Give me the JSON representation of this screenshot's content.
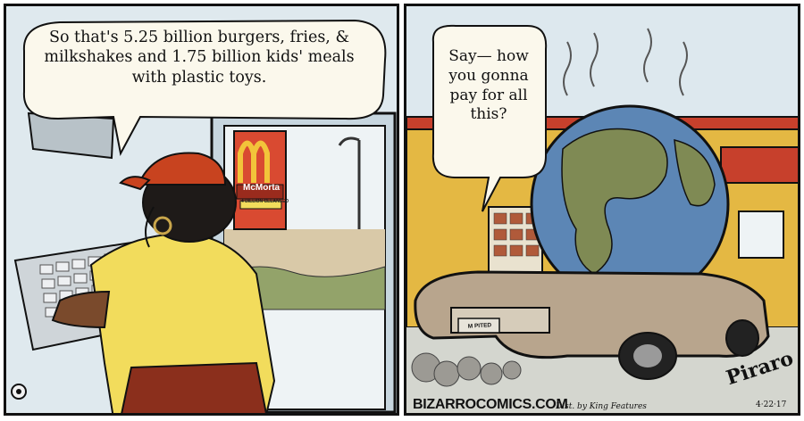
{
  "panel_left": {
    "speech": "So that's 5.25 billion burgers, fries, & milkshakes and 1.75 billion kids' meals with plastic toys.",
    "sign_name": "McMorta",
    "sign_sub": "4 BILLION CLEANSED"
  },
  "panel_right": {
    "speech": "Say— how you gonna pay for all this?",
    "license_plate": "M PITED"
  },
  "credits": {
    "site": "BIZARROCOMICS.COM",
    "distributor": "Dist. by King Features",
    "signature": "Piraro",
    "date": "4·22·17"
  },
  "colors": {
    "sky": "#dde8ee",
    "shirt": "#f2dc5c",
    "cap": "#c8431f",
    "apron": "#8b2f1c",
    "car": "#b8a58d",
    "ocean": "#5c86b5",
    "land": "#7f8a54",
    "building": "#e4b843",
    "roof": "#c7402c",
    "hair": "#1e1a18",
    "skin": "#7a4a2c"
  }
}
